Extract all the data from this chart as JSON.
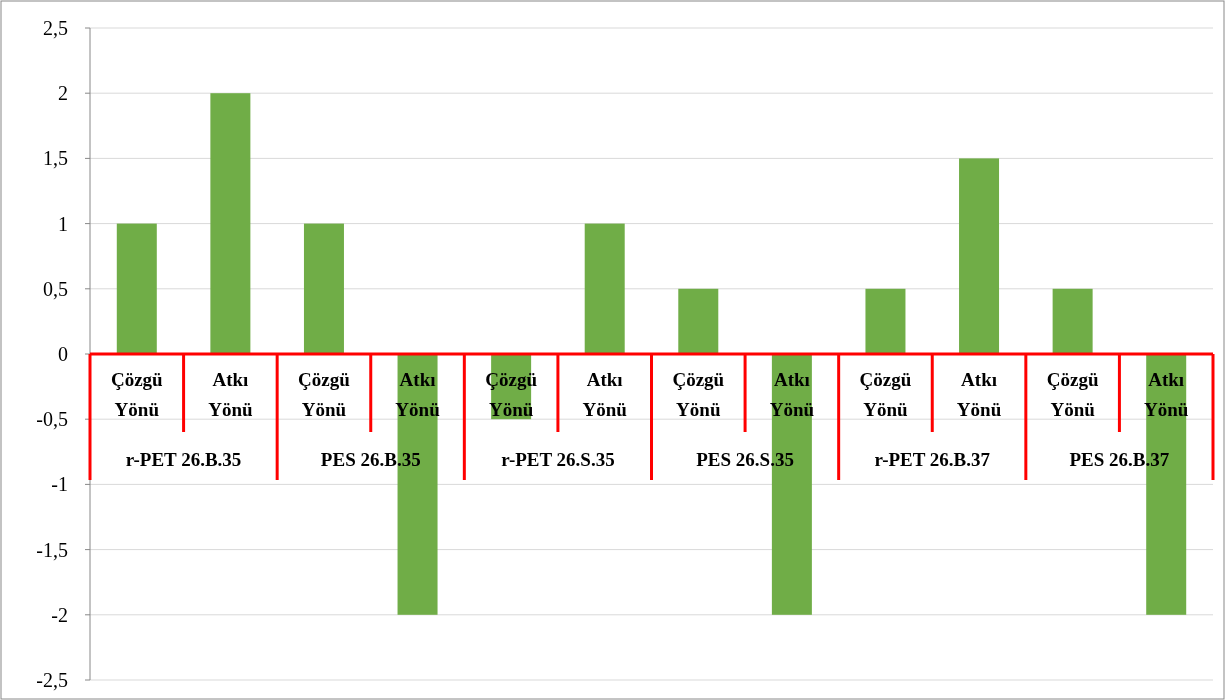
{
  "chart_data": {
    "type": "bar",
    "categories": [
      "Çözgü Yönü",
      "Atkı Yönü",
      "Çözgü Yönü",
      "Atkı Yönü",
      "Çözgü Yönü",
      "Atkı Yönü",
      "Çözgü Yönü",
      "Atkı Yönü",
      "Çözgü Yönü",
      "Atkı Yönü",
      "Çözgü Yönü",
      "Atkı Yönü"
    ],
    "series": [
      {
        "color": "#70ad47",
        "values": [
          1,
          2,
          1,
          -2,
          -0.5,
          1,
          0.5,
          -2,
          0.5,
          1.5,
          0.5,
          -2
        ]
      }
    ],
    "annotations": [
      "r-PET 26.B.35",
      "PES 26.B.35",
      "r-PET 26.S.35",
      "PES 26.S.35",
      "r-PET 26.B.37",
      "PES 26.B.37"
    ],
    "ylim": [
      -2.5,
      2.5
    ],
    "yticks": [
      {
        "value": -2.5,
        "label": "-2,5"
      },
      -2,
      {
        "value": -1.5,
        "label": "-1,5"
      },
      -1,
      {
        "value": -0.5,
        "label": "-0,5"
      },
      0,
      {
        "value": 0.5,
        "label": "0,5"
      },
      1,
      {
        "value": 1.5,
        "label": "1,5"
      },
      2,
      {
        "value": 2.5,
        "label": "2,5"
      }
    ],
    "grid": "y"
  }
}
